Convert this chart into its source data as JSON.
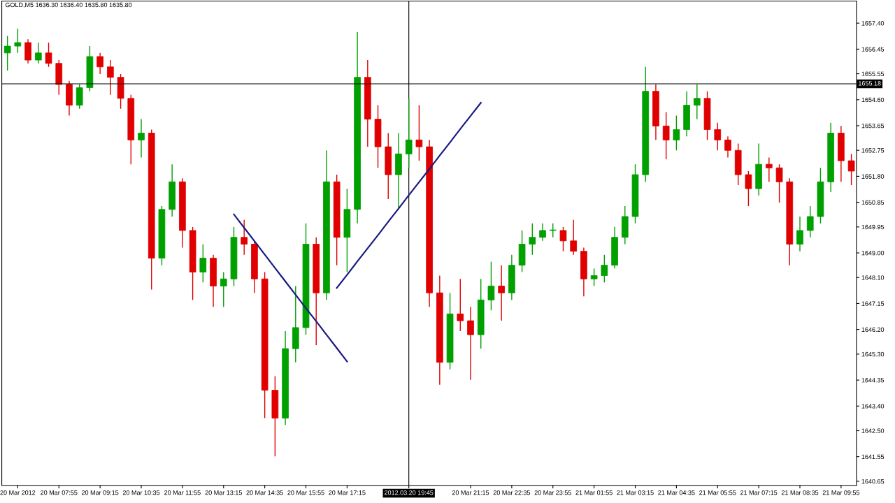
{
  "chart_data": {
    "type": "candlestick",
    "title": "GOLD,M5 1636.30 1636.40 1635.80 1635.80",
    "categories": [
      null,
      "20 Mar 2012",
      null,
      null,
      null,
      "20 Mar 07:55",
      null,
      null,
      null,
      "20 Mar 09:15",
      null,
      null,
      null,
      "20 Mar 10:35",
      null,
      null,
      null,
      "20 Mar 11:55",
      null,
      null,
      null,
      "20 Mar 13:15",
      null,
      null,
      null,
      "20 Mar 14:35",
      null,
      null,
      null,
      "20 Mar 15:55",
      null,
      null,
      null,
      "20 Mar 17:15",
      null,
      null,
      null,
      null,
      null,
      "2012.03.20 19:45",
      null,
      null,
      null,
      null,
      null,
      "20 Mar 21:15",
      null,
      null,
      null,
      "20 Mar 22:35",
      null,
      null,
      null,
      "20 Mar 23:55",
      null,
      null,
      null,
      "21 Mar 01:55",
      null,
      null,
      null,
      "21 Mar 03:15",
      null,
      null,
      null,
      "21 Mar 04:35",
      null,
      null,
      null,
      "21 Mar 05:55",
      null,
      null,
      null,
      "21 Mar 07:15",
      null,
      null,
      null,
      "21 Mar 08:35",
      null,
      null,
      null,
      "21 Mar 09:55",
      null
    ],
    "ohlc": [
      [
        1656.31,
        1656.94,
        1655.67,
        1656.56
      ],
      [
        1656.56,
        1657.2,
        1656.31,
        1656.69
      ],
      [
        1656.69,
        1656.81,
        1655.93,
        1656.05
      ],
      [
        1656.05,
        1656.69,
        1655.93,
        1656.31
      ],
      [
        1656.31,
        1656.69,
        1655.8,
        1655.93
      ],
      [
        1655.93,
        1656.05,
        1654.78,
        1655.16
      ],
      [
        1655.16,
        1655.29,
        1654.02,
        1654.4
      ],
      [
        1654.4,
        1655.16,
        1654.27,
        1655.04
      ],
      [
        1655.04,
        1656.56,
        1654.91,
        1656.18
      ],
      [
        1656.18,
        1656.31,
        1655.54,
        1655.8
      ],
      [
        1655.8,
        1656.05,
        1654.78,
        1655.42
      ],
      [
        1655.42,
        1655.54,
        1654.27,
        1654.65
      ],
      [
        1654.65,
        1654.78,
        1652.24,
        1653.13
      ],
      [
        1653.13,
        1653.89,
        1652.49,
        1653.38
      ],
      [
        1653.38,
        1653.51,
        1647.66,
        1648.81
      ],
      [
        1648.81,
        1650.71,
        1648.55,
        1650.59
      ],
      [
        1650.59,
        1652.24,
        1650.33,
        1651.6
      ],
      [
        1651.6,
        1651.73,
        1649.19,
        1649.82
      ],
      [
        1649.82,
        1649.95,
        1647.28,
        1648.3
      ],
      [
        1648.3,
        1649.32,
        1647.92,
        1648.81
      ],
      [
        1648.81,
        1648.93,
        1647.03,
        1647.79
      ],
      [
        1647.79,
        1648.3,
        1647.03,
        1648.05
      ],
      [
        1648.05,
        1649.95,
        1647.79,
        1649.57
      ],
      [
        1649.57,
        1650.21,
        1648.93,
        1649.32
      ],
      [
        1649.32,
        1649.44,
        1647.54,
        1648.05
      ],
      [
        1648.05,
        1648.3,
        1642.96,
        1643.98
      ],
      [
        1643.98,
        1644.49,
        1641.56,
        1642.96
      ],
      [
        1642.96,
        1646.14,
        1642.71,
        1645.5
      ],
      [
        1645.5,
        1647.79,
        1645.0,
        1646.27
      ],
      [
        1646.27,
        1650.08,
        1646.01,
        1649.32
      ],
      [
        1649.32,
        1649.57,
        1645.63,
        1647.54
      ],
      [
        1647.54,
        1652.75,
        1647.28,
        1651.6
      ],
      [
        1651.6,
        1651.86,
        1648.55,
        1649.57
      ],
      [
        1649.57,
        1651.35,
        1648.3,
        1650.59
      ],
      [
        1650.59,
        1657.07,
        1650.08,
        1655.42
      ],
      [
        1655.42,
        1656.05,
        1652.88,
        1653.89
      ],
      [
        1653.89,
        1654.4,
        1652.11,
        1652.88
      ],
      [
        1652.88,
        1653.38,
        1650.97,
        1651.86
      ],
      [
        1651.86,
        1653.38,
        1650.59,
        1652.62
      ],
      [
        1652.62,
        1654.65,
        1652.11,
        1653.13
      ],
      [
        1653.13,
        1654.4,
        1652.37,
        1652.88
      ],
      [
        1652.88,
        1653.13,
        1647.03,
        1647.54
      ],
      [
        1647.54,
        1648.17,
        1644.18,
        1645.0
      ],
      [
        1645.0,
        1647.54,
        1644.74,
        1646.77
      ],
      [
        1646.77,
        1648.05,
        1646.14,
        1646.52
      ],
      [
        1646.52,
        1647.03,
        1644.36,
        1646.01
      ],
      [
        1646.01,
        1648.05,
        1645.5,
        1647.28
      ],
      [
        1647.28,
        1648.68,
        1646.9,
        1647.79
      ],
      [
        1647.79,
        1648.55,
        1646.52,
        1647.54
      ],
      [
        1647.54,
        1648.93,
        1647.28,
        1648.55
      ],
      [
        1648.55,
        1649.82,
        1648.3,
        1649.32
      ],
      [
        1649.32,
        1650.08,
        1648.93,
        1649.57
      ],
      [
        1649.57,
        1650.08,
        1649.44,
        1649.82
      ],
      [
        1649.82,
        1650.08,
        1649.57,
        1649.82
      ],
      [
        1649.82,
        1649.95,
        1649.06,
        1649.44
      ],
      [
        1649.44,
        1650.21,
        1648.93,
        1649.06
      ],
      [
        1649.06,
        1649.19,
        1647.41,
        1648.05
      ],
      [
        1648.05,
        1648.43,
        1647.79,
        1648.17
      ],
      [
        1648.17,
        1648.93,
        1647.92,
        1648.55
      ],
      [
        1648.55,
        1649.95,
        1648.43,
        1649.57
      ],
      [
        1649.57,
        1650.71,
        1649.32,
        1650.33
      ],
      [
        1650.33,
        1652.24,
        1650.08,
        1651.86
      ],
      [
        1651.86,
        1655.8,
        1651.6,
        1654.91
      ],
      [
        1654.91,
        1655.16,
        1653.13,
        1653.64
      ],
      [
        1653.64,
        1654.15,
        1652.42,
        1653.13
      ],
      [
        1653.13,
        1654.02,
        1652.75,
        1653.51
      ],
      [
        1653.51,
        1654.91,
        1653.26,
        1654.4
      ],
      [
        1654.4,
        1655.16,
        1653.89,
        1654.65
      ],
      [
        1654.65,
        1654.91,
        1653.13,
        1653.51
      ],
      [
        1653.51,
        1653.76,
        1652.75,
        1653.13
      ],
      [
        1653.13,
        1653.26,
        1652.49,
        1652.75
      ],
      [
        1652.75,
        1653.0,
        1651.48,
        1651.86
      ],
      [
        1651.86,
        1651.99,
        1650.71,
        1651.35
      ],
      [
        1651.35,
        1653.0,
        1651.1,
        1652.24
      ],
      [
        1652.24,
        1652.49,
        1651.6,
        1652.11
      ],
      [
        1652.11,
        1652.24,
        1650.84,
        1651.6
      ],
      [
        1651.6,
        1651.73,
        1648.55,
        1649.32
      ],
      [
        1649.32,
        1650.33,
        1649.06,
        1649.82
      ],
      [
        1649.82,
        1650.71,
        1649.57,
        1650.33
      ],
      [
        1650.33,
        1652.11,
        1650.08,
        1651.6
      ],
      [
        1651.6,
        1653.76,
        1651.22,
        1653.38
      ],
      [
        1653.38,
        1653.64,
        1651.6,
        1652.37
      ],
      [
        1652.37,
        1652.62,
        1651.48,
        1651.99
      ]
    ],
    "colors": [
      "#00a000",
      "#00a000",
      "#e00000",
      "#00a000",
      "#e00000",
      "#e00000",
      "#e00000",
      "#00a000",
      "#00a000",
      "#e00000",
      "#e00000",
      "#e00000",
      "#e00000",
      "#00a000",
      "#e00000",
      "#00a000",
      "#00a000",
      "#e00000",
      "#e00000",
      "#00a000",
      "#e00000",
      "#00a000",
      "#00a000",
      "#e00000",
      "#e00000",
      "#e00000",
      "#e00000",
      "#00a000",
      "#00a000",
      "#00a000",
      "#e00000",
      "#00a000",
      "#e00000",
      "#00a000",
      "#00a000",
      "#e00000",
      "#e00000",
      "#e00000",
      "#00a000",
      "#00a000",
      "#e00000",
      "#e00000",
      "#e00000",
      "#00a000",
      "#e00000",
      "#e00000",
      "#00a000",
      "#00a000",
      "#e00000",
      "#00a000",
      "#00a000",
      "#00a000",
      "#00a000",
      "#00a000",
      "#e00000",
      "#e00000",
      "#e00000",
      "#00a000",
      "#00a000",
      "#00a000",
      "#00a000",
      "#00a000",
      "#00a000",
      "#e00000",
      "#e00000",
      "#00a000",
      "#00a000",
      "#00a000",
      "#e00000",
      "#e00000",
      "#e00000",
      "#e00000",
      "#e00000",
      "#00a000",
      "#e00000",
      "#e00000",
      "#e00000",
      "#00a000",
      "#00a000",
      "#00a000",
      "#00a000",
      "#e00000",
      "#e00000"
    ],
    "series": [
      {
        "type": "line",
        "color": "#1a1a80",
        "values": [
          null,
          null,
          null,
          null,
          null,
          null,
          null,
          null,
          null,
          null,
          null,
          null,
          null,
          null,
          null,
          null,
          null,
          null,
          null,
          null,
          null,
          null,
          1650.41,
          1649.92,
          1649.43,
          1648.94,
          1648.45,
          1647.96,
          1647.47,
          1646.98,
          1646.5,
          1646.01,
          1645.52,
          1645.03,
          null,
          null,
          null,
          null,
          null,
          null,
          null,
          null,
          null,
          null,
          null,
          null,
          null,
          null,
          null,
          null,
          null,
          null,
          null,
          null,
          null,
          null,
          null,
          null,
          null,
          null,
          null,
          null,
          null,
          null,
          null,
          null,
          null,
          null,
          null,
          null,
          null,
          null,
          null,
          null,
          null,
          null,
          null,
          null,
          null,
          null,
          null,
          null,
          null
        ]
      },
      {
        "type": "line",
        "color": "#1a1a80",
        "values": [
          null,
          null,
          null,
          null,
          null,
          null,
          null,
          null,
          null,
          null,
          null,
          null,
          null,
          null,
          null,
          null,
          null,
          null,
          null,
          null,
          null,
          null,
          null,
          null,
          null,
          null,
          null,
          null,
          null,
          null,
          null,
          null,
          1647.72,
          1648.2,
          1648.69,
          1649.17,
          1649.65,
          1650.14,
          1650.62,
          1651.11,
          1651.59,
          1652.07,
          1652.56,
          1653.04,
          1653.53,
          1654.01,
          1654.49,
          null,
          null,
          null,
          null,
          null,
          null,
          null,
          null,
          null,
          null,
          null,
          null,
          null,
          null,
          null,
          null,
          null,
          null,
          null,
          null,
          null,
          null,
          null,
          null,
          null,
          null,
          null,
          null,
          null,
          null,
          null,
          null,
          null,
          null,
          null,
          null
        ]
      }
    ],
    "ylim": [
      1640.5,
      1658.21
    ],
    "yticks": [
      {
        "value": 1657.4,
        "label": "1657.40"
      },
      {
        "value": 1656.45,
        "label": "1656.45"
      },
      {
        "value": 1655.55,
        "label": "1655.55"
      },
      {
        "value": 1654.6,
        "label": "1654.60"
      },
      {
        "value": 1653.65,
        "label": "1653.65"
      },
      {
        "value": 1652.75,
        "label": "1652.75"
      },
      {
        "value": 1651.8,
        "label": "1651.80"
      },
      {
        "value": 1650.85,
        "label": "1650.85"
      },
      {
        "value": 1649.95,
        "label": "1649.95"
      },
      {
        "value": 1649.0,
        "label": "1649.00"
      },
      {
        "value": 1648.1,
        "label": "1648.10"
      },
      {
        "value": 1647.15,
        "label": "1647.15"
      },
      {
        "value": 1646.2,
        "label": "1646.20"
      },
      {
        "value": 1645.3,
        "label": "1645.30"
      },
      {
        "value": 1644.35,
        "label": "1644.35"
      },
      {
        "value": 1643.4,
        "label": "1643.40"
      },
      {
        "value": 1642.5,
        "label": "1642.50"
      },
      {
        "value": 1641.55,
        "label": "1641.55"
      },
      {
        "value": 1640.65,
        "label": "1640.65"
      }
    ],
    "ref_lines": [
      {
        "axis": "y",
        "value": 1655.18,
        "label": "1655.18",
        "color": "#000000"
      },
      {
        "axis": "x",
        "value": "2012.03.20 19:45",
        "color": "#000000"
      }
    ],
    "grid": false,
    "legend": false
  }
}
